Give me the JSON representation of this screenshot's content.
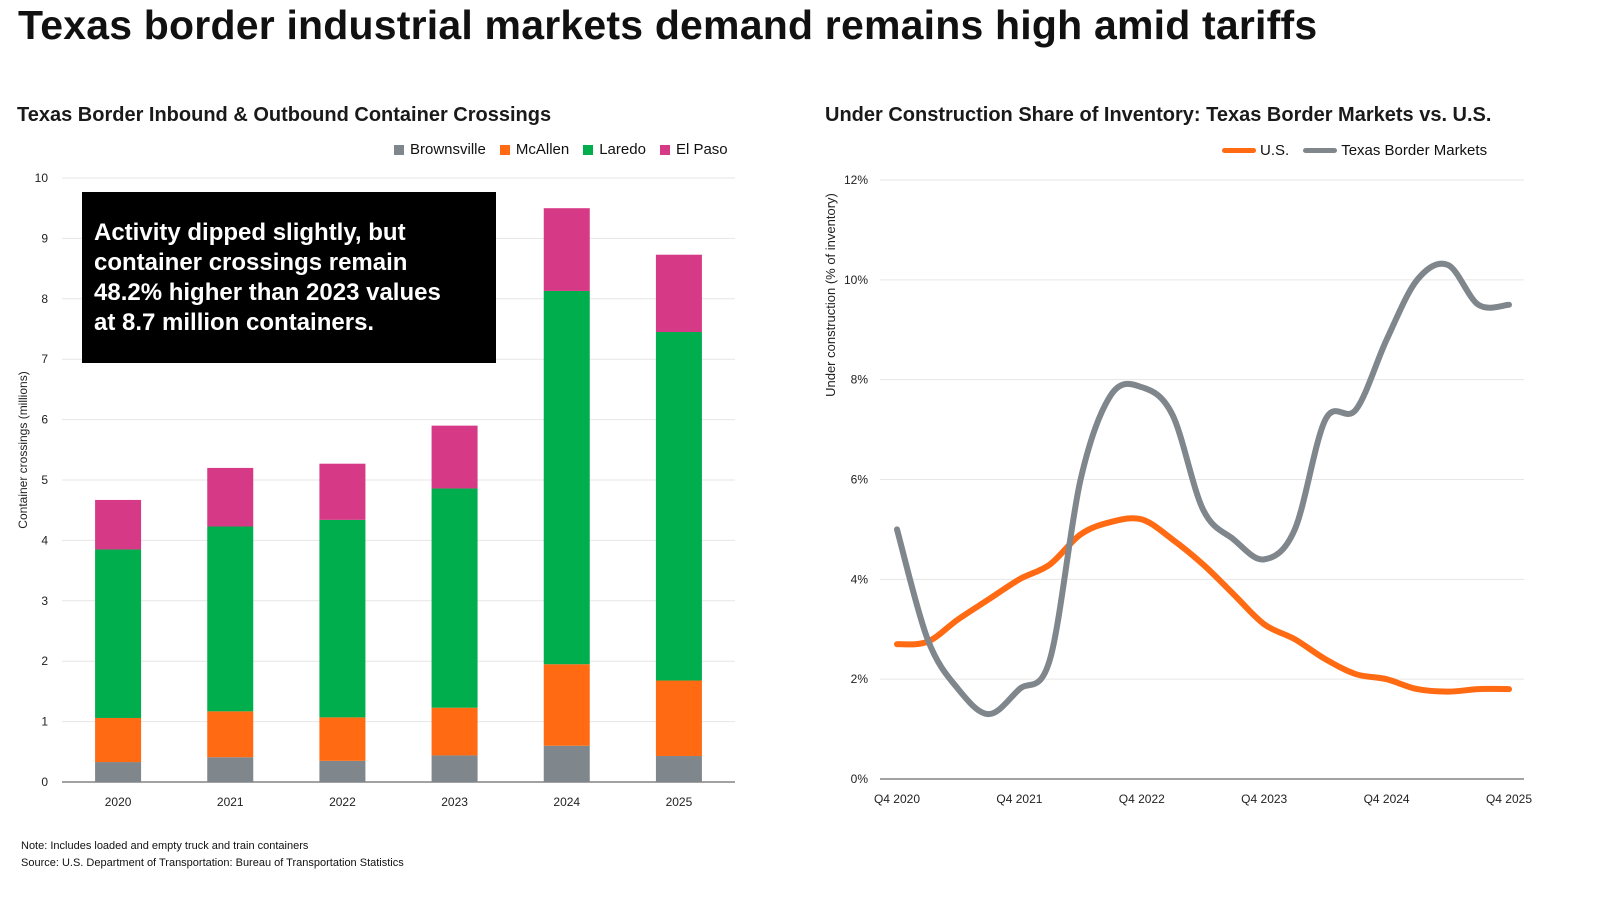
{
  "page": {
    "title": "Texas border industrial markets demand remains high amid tariffs",
    "note": "Note: Includes loaded and empty truck and train containers",
    "source": "Source: U.S. Department of Transportation: Bureau of Transportation Statistics"
  },
  "callout": {
    "lines": [
      "Activity dipped slightly, but",
      "container crossings remain",
      "48.2% higher than 2023 values",
      "at 8.7 million containers."
    ]
  },
  "chart_data": [
    {
      "type": "bar",
      "stacked": true,
      "title": "Texas Border Inbound & Outbound Container Crossings",
      "xlabel": "",
      "ylabel": "Container crossings (millions)",
      "ylim": [
        0,
        10
      ],
      "yticks": [
        "0",
        "1",
        "2",
        "3",
        "4",
        "5",
        "6",
        "7",
        "8",
        "9",
        "10"
      ],
      "categories": [
        "2020",
        "2021",
        "2022",
        "2023",
        "2024",
        "2025"
      ],
      "series": [
        {
          "name": "Brownsville",
          "color": "#7f868c",
          "values": [
            0.33,
            0.41,
            0.35,
            0.44,
            0.6,
            0.43
          ]
        },
        {
          "name": "McAllen",
          "color": "#ff6a13",
          "values": [
            0.73,
            0.76,
            0.72,
            0.79,
            1.35,
            1.25
          ]
        },
        {
          "name": "Laredo",
          "color": "#00ae4d",
          "values": [
            2.79,
            3.06,
            3.27,
            3.63,
            6.18,
            5.77
          ]
        },
        {
          "name": "El Paso",
          "color": "#d63a86",
          "values": [
            0.82,
            0.97,
            0.93,
            1.04,
            1.37,
            1.28
          ]
        }
      ],
      "grid": true,
      "legend": "top-right"
    },
    {
      "type": "line",
      "title": "Under Construction Share of Inventory: Texas Border Markets vs. U.S.",
      "xlabel": "",
      "ylabel": "Under construction (% of inventory)",
      "ylim": [
        0,
        12
      ],
      "yticks": [
        "0%",
        "2%",
        "4%",
        "6%",
        "8%",
        "10%",
        "12%"
      ],
      "xticks": [
        "Q4 2020",
        "Q4 2021",
        "Q4 2022",
        "Q4 2023",
        "Q4 2024",
        "Q4 2025"
      ],
      "x": [
        0,
        0.25,
        0.5,
        0.75,
        1,
        1.25,
        1.5,
        1.75,
        2,
        2.25,
        2.5,
        2.75,
        3,
        3.25,
        3.5,
        3.75,
        4,
        4.25,
        4.5,
        4.75,
        5
      ],
      "series": [
        {
          "name": "U.S.",
          "color": "#ff6a13",
          "values": [
            2.7,
            2.75,
            3.2,
            3.6,
            4.0,
            4.3,
            4.9,
            5.15,
            5.2,
            4.8,
            4.3,
            3.7,
            3.1,
            2.8,
            2.4,
            2.1,
            2.0,
            1.8,
            1.75,
            1.8,
            1.8
          ]
        },
        {
          "name": "Texas Border Markets",
          "color": "#7f868c",
          "values": [
            5.0,
            2.8,
            1.8,
            1.3,
            1.8,
            2.4,
            6.0,
            7.7,
            7.85,
            7.3,
            5.4,
            4.8,
            4.4,
            5.0,
            7.2,
            7.4,
            8.8,
            10.0,
            10.3,
            9.5,
            9.5
          ]
        }
      ],
      "grid": true,
      "legend": "top-right"
    }
  ]
}
